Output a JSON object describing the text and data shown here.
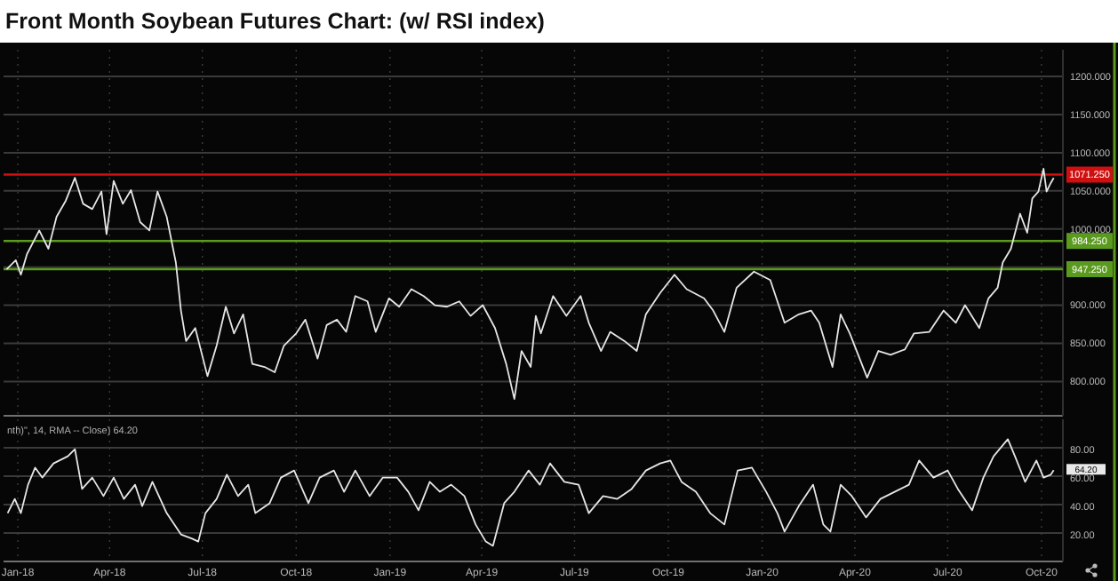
{
  "chart_data": [
    {
      "type": "line",
      "title": "Front Month Soybean Futures Chart: (w/ RSI index)",
      "xlim": [
        "2017-12-18",
        "2020-10-22"
      ],
      "ylim": [
        755,
        1235
      ],
      "xticks": [
        {
          "value": "2018-01",
          "label": null
        },
        {
          "value": "2018-04",
          "label": null
        },
        {
          "value": "2018-07",
          "label": null
        },
        {
          "value": "2018-10",
          "label": null
        },
        {
          "value": "2019-01",
          "label": null
        },
        {
          "value": "2019-04",
          "label": null
        },
        {
          "value": "2019-07",
          "label": null
        },
        {
          "value": "2019-10",
          "label": null
        },
        {
          "value": "2020-01",
          "label": null
        },
        {
          "value": "2020-04",
          "label": null
        },
        {
          "value": "2020-07",
          "label": null
        },
        {
          "value": "2020-10",
          "label": null
        }
      ],
      "yticks": [
        {
          "value": 800,
          "label": "800.000"
        },
        {
          "value": 850,
          "label": "850.000"
        },
        {
          "value": 900,
          "label": "900.000"
        },
        {
          "value": 950,
          "label": null
        },
        {
          "value": 1000,
          "label": "1000.000"
        },
        {
          "value": 1050,
          "label": "1050.000"
        },
        {
          "value": 1100,
          "label": "1100.000"
        },
        {
          "value": 1150,
          "label": "1150.000"
        },
        {
          "value": 1200,
          "label": "1200.000"
        }
      ],
      "tick_labels": "y",
      "grid": true,
      "marker": "none",
      "line_style": "solid",
      "ref_lines": [
        {
          "axis": "y",
          "value": 1071.25,
          "label": "1071.250",
          "color": "#d01010"
        },
        {
          "axis": "y",
          "value": 984.25,
          "label": "984.250",
          "color": "#5a9a1e"
        },
        {
          "axis": "y",
          "value": 947.25,
          "label": "947.250",
          "color": "#5a9a1e"
        }
      ],
      "series": [
        {
          "color": "#e6e6e6",
          "x": [
            "2017-12-21",
            "2017-12-30",
            "2018-01-04",
            "2018-01-10",
            "2018-01-22",
            "2018-01-31",
            "2018-02-08",
            "2018-02-17",
            "2018-02-26",
            "2018-03-06",
            "2018-03-15",
            "2018-03-24",
            "2018-03-29",
            "2018-04-05",
            "2018-04-14",
            "2018-04-22",
            "2018-05-01",
            "2018-05-10",
            "2018-05-18",
            "2018-05-27",
            "2018-06-05",
            "2018-06-10",
            "2018-06-15",
            "2018-06-24",
            "2018-07-06",
            "2018-07-15",
            "2018-07-24",
            "2018-08-01",
            "2018-08-10",
            "2018-08-19",
            "2018-08-31",
            "2018-09-10",
            "2018-09-19",
            "2018-10-01",
            "2018-10-10",
            "2018-10-22",
            "2018-10-31",
            "2018-11-10",
            "2018-11-19",
            "2018-11-28",
            "2018-12-10",
            "2018-12-18",
            "2018-12-31",
            "2019-01-10",
            "2019-01-22",
            "2019-02-03",
            "2019-02-14",
            "2019-02-26",
            "2019-03-10",
            "2019-03-21",
            "2019-04-02",
            "2019-04-14",
            "2019-04-25",
            "2019-05-03",
            "2019-05-10",
            "2019-05-19",
            "2019-05-24",
            "2019-05-29",
            "2019-06-10",
            "2019-06-23",
            "2019-07-07",
            "2019-07-15",
            "2019-07-27",
            "2019-08-05",
            "2019-08-19",
            "2019-08-31",
            "2019-09-09",
            "2019-09-23",
            "2019-10-07",
            "2019-10-19",
            "2019-11-05",
            "2019-11-14",
            "2019-11-25",
            "2019-12-07",
            "2019-12-24",
            "2020-01-09",
            "2020-01-23",
            "2020-02-06",
            "2020-02-18",
            "2020-02-26",
            "2020-03-10",
            "2020-03-18",
            "2020-03-27",
            "2020-04-13",
            "2020-04-24",
            "2020-05-06",
            "2020-05-20",
            "2020-05-29",
            "2020-06-13",
            "2020-06-27",
            "2020-07-09",
            "2020-07-18",
            "2020-08-01",
            "2020-08-10",
            "2020-08-19",
            "2020-08-24",
            "2020-09-01",
            "2020-09-10",
            "2020-09-17",
            "2020-09-22",
            "2020-09-28",
            "2020-10-03",
            "2020-10-06",
            "2020-10-10",
            "2020-10-13"
          ],
          "values": [
            947,
            959,
            940,
            967,
            998,
            974,
            1016,
            1037,
            1067,
            1033,
            1026,
            1049,
            993,
            1063,
            1033,
            1051,
            1009,
            998,
            1049,
            1016,
            956,
            893,
            853,
            870,
            807,
            847,
            898,
            863,
            888,
            823,
            819,
            812,
            847,
            863,
            881,
            830,
            874,
            881,
            865,
            912,
            905,
            865,
            909,
            898,
            921,
            912,
            900,
            898,
            905,
            886,
            900,
            870,
            823,
            777,
            840,
            819,
            886,
            863,
            912,
            886,
            912,
            877,
            840,
            865,
            853,
            840,
            888,
            916,
            940,
            921,
            909,
            893,
            865,
            923,
            944,
            933,
            877,
            888,
            893,
            877,
            819,
            888,
            863,
            805,
            840,
            835,
            842,
            863,
            865,
            893,
            877,
            900,
            870,
            909,
            923,
            956,
            974,
            1020,
            995,
            1040,
            1049,
            1079,
            1049,
            1060,
            1067
          ]
        }
      ]
    },
    {
      "type": "line",
      "xlim": [
        "2017-12-18",
        "2020-10-22"
      ],
      "ylim": [
        0,
        100
      ],
      "xticks": [
        {
          "value": "2018-01",
          "label": "Jan-18"
        },
        {
          "value": "2018-04",
          "label": "Apr-18"
        },
        {
          "value": "2018-07",
          "label": "Jul-18"
        },
        {
          "value": "2018-10",
          "label": "Oct-18"
        },
        {
          "value": "2019-01",
          "label": "Jan-19"
        },
        {
          "value": "2019-04",
          "label": "Apr-19"
        },
        {
          "value": "2019-07",
          "label": "Jul-19"
        },
        {
          "value": "2019-10",
          "label": "Oct-19"
        },
        {
          "value": "2020-01",
          "label": "Jan-20"
        },
        {
          "value": "2020-04",
          "label": "Apr-20"
        },
        {
          "value": "2020-07",
          "label": "Jul-20"
        },
        {
          "value": "2020-10",
          "label": "Oct-20"
        }
      ],
      "yticks": [
        {
          "value": 20,
          "label": "20.00"
        },
        {
          "value": 40,
          "label": "40.00"
        },
        {
          "value": 60,
          "label": "60.00"
        },
        {
          "value": 80,
          "label": "80.00"
        }
      ],
      "grid": true,
      "marker": "none",
      "line_style": "solid",
      "annotations": [
        "nth)\", 14, RMA -- Close) 64.20",
        {
          "text": "64.20",
          "x": "2020-10-13",
          "y": 64.2
        }
      ],
      "series": [
        {
          "color": "#e6e6e6",
          "x": [
            "2017-12-22",
            "2017-12-29",
            "2018-01-04",
            "2018-01-11",
            "2018-01-18",
            "2018-01-25",
            "2018-02-05",
            "2018-02-19",
            "2018-02-26",
            "2018-03-05",
            "2018-03-15",
            "2018-03-26",
            "2018-04-05",
            "2018-04-15",
            "2018-04-26",
            "2018-05-03",
            "2018-05-13",
            "2018-05-27",
            "2018-06-10",
            "2018-06-21",
            "2018-06-27",
            "2018-07-04",
            "2018-07-15",
            "2018-07-25",
            "2018-08-05",
            "2018-08-15",
            "2018-08-22",
            "2018-09-05",
            "2018-09-16",
            "2018-09-29",
            "2018-10-13",
            "2018-10-24",
            "2018-11-07",
            "2018-11-17",
            "2018-11-28",
            "2018-12-12",
            "2018-12-25",
            "2019-01-08",
            "2019-01-19",
            "2019-01-29",
            "2019-02-09",
            "2019-02-19",
            "2019-03-02",
            "2019-03-15",
            "2019-03-26",
            "2019-04-05",
            "2019-04-12",
            "2019-04-23",
            "2019-05-03",
            "2019-05-17",
            "2019-05-28",
            "2019-06-07",
            "2019-06-21",
            "2019-07-05",
            "2019-07-15",
            "2019-07-29",
            "2019-08-12",
            "2019-08-26",
            "2019-09-09",
            "2019-09-23",
            "2019-10-03",
            "2019-10-14",
            "2019-10-28",
            "2019-11-11",
            "2019-11-25",
            "2019-12-08",
            "2019-12-22",
            "2020-01-05",
            "2020-01-16",
            "2020-01-23",
            "2020-02-06",
            "2020-02-20",
            "2020-03-01",
            "2020-03-08",
            "2020-03-18",
            "2020-03-29",
            "2020-04-12",
            "2020-04-26",
            "2020-05-10",
            "2020-05-24",
            "2020-06-03",
            "2020-06-17",
            "2020-07-01",
            "2020-07-11",
            "2020-07-25",
            "2020-08-05",
            "2020-08-15",
            "2020-08-29",
            "2020-09-05",
            "2020-09-15",
            "2020-09-26",
            "2020-10-03",
            "2020-10-10",
            "2020-10-13"
          ],
          "values": [
            34,
            44,
            34,
            54,
            66,
            59,
            69,
            74,
            79,
            51,
            59,
            46,
            59,
            44,
            54,
            39,
            56,
            34,
            19,
            16,
            14,
            34,
            44,
            61,
            46,
            54,
            34,
            41,
            59,
            64,
            41,
            59,
            64,
            49,
            64,
            46,
            59,
            59,
            49,
            36,
            56,
            49,
            54,
            46,
            26,
            14,
            11,
            41,
            49,
            64,
            54,
            69,
            56,
            54,
            34,
            46,
            44,
            51,
            64,
            69,
            71,
            56,
            49,
            34,
            26,
            64,
            66,
            49,
            34,
            21,
            39,
            54,
            26,
            21,
            54,
            46,
            31,
            44,
            49,
            54,
            71,
            59,
            64,
            51,
            36,
            59,
            74,
            86,
            74,
            56,
            71,
            59,
            61,
            64.2
          ]
        }
      ]
    }
  ]
}
